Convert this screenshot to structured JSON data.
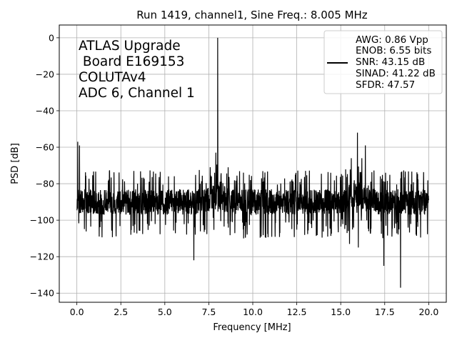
{
  "chart_data": {
    "type": "line",
    "title": "Run 1419, channel1, Sine Freq.: 8.005 MHz",
    "xlabel": "Frequency [MHz]",
    "ylabel": "PSD [dB]",
    "xlim": [
      -1.0,
      21.0
    ],
    "ylim": [
      -145,
      7
    ],
    "xticks": [
      0.0,
      2.5,
      5.0,
      7.5,
      10.0,
      12.5,
      15.0,
      17.5,
      20.0
    ],
    "xtick_labels": [
      "0.0",
      "2.5",
      "5.0",
      "7.5",
      "10.0",
      "12.5",
      "15.0",
      "17.5",
      "20.0"
    ],
    "yticks": [
      0,
      -20,
      -40,
      -60,
      -80,
      -100,
      -120,
      -140
    ],
    "ytick_labels": [
      "0",
      "−20",
      "−40",
      "−60",
      "−80",
      "−100",
      "−120",
      "−140"
    ],
    "grid": true,
    "annotation_lines": [
      "ATLAS Upgrade",
      " Board E169153",
      "COLUTAv4",
      "ADC 6, Channel 1"
    ],
    "legend": {
      "placement": "top-right",
      "lines": [
        "AWG: 0.86 Vpp",
        "ENOB: 6.55 bits",
        "SNR: 43.15 dB",
        "SINAD: 41.22 dB",
        "SFDR: 47.57"
      ]
    },
    "series": [
      {
        "color": "#000000",
        "x_range": [
          0.0,
          20.0
        ],
        "noise_floor_db": -90,
        "noise_floor_band_db": [
          -100,
          -75
        ],
        "peaks": [
          {
            "x": 0.05,
            "y": -57
          },
          {
            "x": 0.15,
            "y": -59
          },
          {
            "x": 8.005,
            "y": 0
          },
          {
            "x": 7.9,
            "y": -63
          },
          {
            "x": 15.95,
            "y": -52
          },
          {
            "x": 16.2,
            "y": -66
          },
          {
            "x": 16.4,
            "y": -59
          },
          {
            "x": 15.6,
            "y": -66
          }
        ],
        "dips": [
          {
            "x": 6.65,
            "y": -122
          },
          {
            "x": 17.45,
            "y": -125
          },
          {
            "x": 18.4,
            "y": -137
          },
          {
            "x": 16.0,
            "y": -115
          },
          {
            "x": 15.5,
            "y": -113
          }
        ]
      }
    ]
  }
}
